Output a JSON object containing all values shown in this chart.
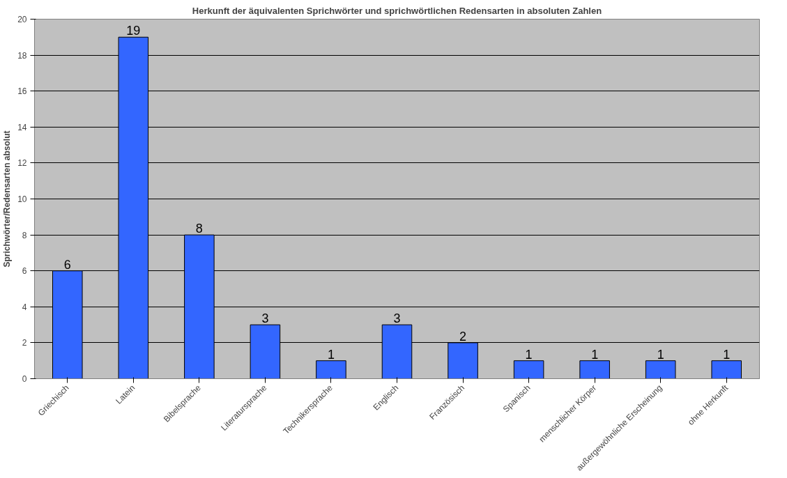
{
  "chart_data": {
    "type": "bar",
    "title": "Herkunft der äquivalenten Sprichwörter und sprichwörtlichen Redensarten in absoluten Zahlen",
    "ylabel": "Sprichwörter/Redensarten absolut",
    "categories": [
      "Griechisch",
      "Latein",
      "Bibelsprache",
      "Literatursprache",
      "Technikersprache",
      "Englisch",
      "Französisch",
      "Spanisch",
      "menschlicher Körper",
      "außergewöhnliche Erscheinung",
      "ohne Herkunft"
    ],
    "values": [
      6,
      19,
      8,
      3,
      1,
      3,
      2,
      1,
      1,
      1,
      1
    ],
    "color": "#3366ff",
    "ylim": [
      0,
      20
    ],
    "yticks": [
      0,
      2,
      4,
      6,
      8,
      10,
      12,
      14,
      16,
      18,
      20
    ],
    "grid": "y",
    "data_labels": true
  }
}
